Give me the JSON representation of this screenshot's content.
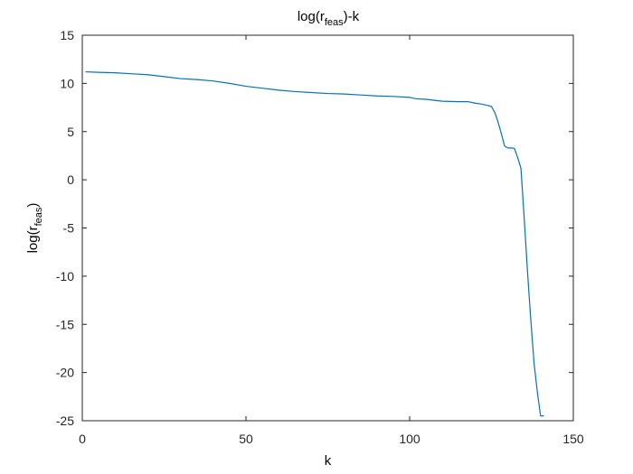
{
  "chart_data": {
    "type": "line",
    "title": {
      "base": "log(r",
      "sub": "feas",
      "tail": ")-k"
    },
    "xlabel": "k",
    "ylabel": {
      "base": "log(r",
      "sub": "feas",
      "tail": ")"
    },
    "xlim": [
      0,
      150
    ],
    "ylim": [
      -25,
      15
    ],
    "xticks": [
      0,
      50,
      100,
      150
    ],
    "yticks": [
      -25,
      -20,
      -15,
      -10,
      -5,
      0,
      5,
      10,
      15
    ],
    "xtick_labels": [
      "0",
      "50",
      "100",
      "150"
    ],
    "ytick_labels": [
      "-25",
      "-20",
      "-15",
      "-10",
      "-5",
      "0",
      "5",
      "10",
      "15"
    ],
    "grid": false,
    "line_color": "#0072BD",
    "series": [
      {
        "x": [
          1,
          5,
          10,
          15,
          20,
          25,
          30,
          35,
          40,
          45,
          50,
          55,
          60,
          65,
          70,
          75,
          80,
          85,
          90,
          95,
          100,
          102,
          105,
          110,
          115,
          118,
          120,
          122,
          124,
          125,
          126,
          127,
          128,
          129,
          130,
          131,
          132,
          133,
          134,
          135,
          136,
          137,
          138,
          139,
          140,
          141
        ],
        "y": [
          11.2,
          11.15,
          11.1,
          11.0,
          10.9,
          10.7,
          10.5,
          10.4,
          10.25,
          10.0,
          9.7,
          9.5,
          9.3,
          9.15,
          9.05,
          8.95,
          8.9,
          8.8,
          8.7,
          8.65,
          8.55,
          8.4,
          8.35,
          8.15,
          8.1,
          8.1,
          7.95,
          7.85,
          7.7,
          7.6,
          7.0,
          6.0,
          4.8,
          3.5,
          3.3,
          3.3,
          3.25,
          2.3,
          1.2,
          -4.0,
          -9.5,
          -14.5,
          -19.0,
          -22.0,
          -24.5,
          -24.5
        ]
      }
    ]
  }
}
